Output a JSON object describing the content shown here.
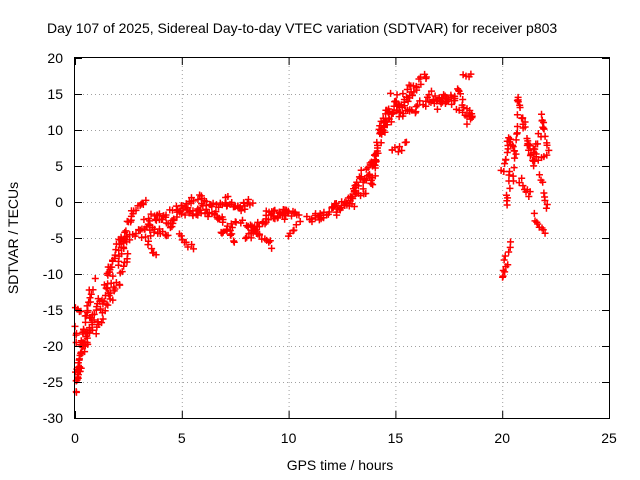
{
  "chart_data": {
    "type": "scatter",
    "title": "Day 107 of 2025, Sidereal Day-to-day VTEC variation (SDTVAR) for receiver p803",
    "xlabel": "GPS time / hours",
    "ylabel": "SDTVAR / TECUs",
    "xlim": [
      0,
      25
    ],
    "ylim": [
      -30,
      20
    ],
    "xticks": [
      0,
      5,
      10,
      15,
      20,
      25
    ],
    "yticks": [
      -30,
      -25,
      -20,
      -15,
      -10,
      -5,
      0,
      5,
      10,
      15,
      20
    ],
    "xtick_labels": [
      "0",
      "5",
      "10",
      "15",
      "20",
      "25"
    ],
    "ytick_labels": [
      "-30",
      "-25",
      "-20",
      "-15",
      "-10",
      "-5",
      "0",
      "5",
      "10",
      "15",
      "20"
    ],
    "grid": true,
    "marker": "+",
    "series_color": "#ff0000",
    "segments": [
      {
        "x0": 0.0,
        "x1": 0.25,
        "y0": -26.0,
        "y1": -22.0,
        "n": 14,
        "jitter": 1.2
      },
      {
        "x0": 0.05,
        "x1": 0.45,
        "y0": -25.0,
        "y1": -18.0,
        "n": 14,
        "jitter": 1.0
      },
      {
        "x0": 0.2,
        "x1": 0.8,
        "y0": -22.0,
        "y1": -16.0,
        "n": 14,
        "jitter": 1.0
      },
      {
        "x0": 0.5,
        "x1": 1.0,
        "y0": -20.0,
        "y1": -15.0,
        "n": 12,
        "jitter": 1.0
      },
      {
        "x0": 0.3,
        "x1": 0.7,
        "y0": -20.0,
        "y1": -12.0,
        "n": 10,
        "jitter": 0.8
      },
      {
        "x0": 0.55,
        "x1": 0.9,
        "y0": -15.0,
        "y1": -11.0,
        "n": 6,
        "jitter": 0.5
      },
      {
        "x0": 0.05,
        "x1": 0.3,
        "y0": -15.0,
        "y1": -15.5,
        "n": 4,
        "jitter": 0.4
      },
      {
        "x0": 0.0,
        "x1": 0.1,
        "y0": -17.5,
        "y1": -19.5,
        "n": 4,
        "jitter": 0.4
      },
      {
        "x0": 1.0,
        "x1": 1.6,
        "y0": -18.0,
        "y1": -12.0,
        "n": 16,
        "jitter": 1.2
      },
      {
        "x0": 1.0,
        "x1": 1.8,
        "y0": -15.0,
        "y1": -9.0,
        "n": 16,
        "jitter": 1.2
      },
      {
        "x0": 1.5,
        "x1": 2.2,
        "y0": -11.0,
        "y1": -5.0,
        "n": 16,
        "jitter": 1.2
      },
      {
        "x0": 1.6,
        "x1": 2.5,
        "y0": -14.0,
        "y1": -8.0,
        "n": 16,
        "jitter": 1.2
      },
      {
        "x0": 2.0,
        "x1": 2.4,
        "y0": -9.0,
        "y1": -4.5,
        "n": 10,
        "jitter": 0.8
      },
      {
        "x0": 2.2,
        "x1": 2.7,
        "y0": -6.0,
        "y1": -1.0,
        "n": 10,
        "jitter": 0.8
      },
      {
        "x0": 2.6,
        "x1": 3.3,
        "y0": -2.0,
        "y1": 0.5,
        "n": 10,
        "jitter": 0.6
      },
      {
        "x0": 2.3,
        "x1": 3.8,
        "y0": -5.0,
        "y1": -2.0,
        "n": 16,
        "jitter": 0.8
      },
      {
        "x0": 3.0,
        "x1": 3.8,
        "y0": -4.0,
        "y1": -7.5,
        "n": 10,
        "jitter": 0.5
      },
      {
        "x0": 3.2,
        "x1": 4.4,
        "y0": -4.0,
        "y1": -1.0,
        "n": 12,
        "jitter": 0.7
      },
      {
        "x0": 3.5,
        "x1": 4.5,
        "y0": -4.5,
        "y1": -4.0,
        "n": 12,
        "jitter": 0.6
      },
      {
        "x0": 3.9,
        "x1": 4.5,
        "y0": -1.5,
        "y1": -3.0,
        "n": 8,
        "jitter": 0.5
      },
      {
        "x0": 4.4,
        "x1": 5.0,
        "y0": -3.5,
        "y1": -0.5,
        "n": 10,
        "jitter": 0.5
      },
      {
        "x0": 4.6,
        "x1": 5.4,
        "y0": -1.0,
        "y1": -1.5,
        "n": 10,
        "jitter": 0.5
      },
      {
        "x0": 4.9,
        "x1": 5.5,
        "y0": -4.5,
        "y1": -6.5,
        "n": 8,
        "jitter": 0.4
      },
      {
        "x0": 5.0,
        "x1": 5.9,
        "y0": -0.5,
        "y1": 1.0,
        "n": 10,
        "jitter": 0.5
      },
      {
        "x0": 5.5,
        "x1": 6.2,
        "y0": -2.0,
        "y1": 0.0,
        "n": 10,
        "jitter": 0.5
      },
      {
        "x0": 5.3,
        "x1": 6.5,
        "y0": -1.0,
        "y1": -2.0,
        "n": 12,
        "jitter": 0.5
      },
      {
        "x0": 6.0,
        "x1": 6.9,
        "y0": 0.0,
        "y1": -2.5,
        "n": 10,
        "jitter": 0.5
      },
      {
        "x0": 6.3,
        "x1": 7.2,
        "y0": -1.0,
        "y1": 0.5,
        "n": 10,
        "jitter": 0.5
      },
      {
        "x0": 6.7,
        "x1": 7.5,
        "y0": -2.0,
        "y1": -5.5,
        "n": 10,
        "jitter": 0.5
      },
      {
        "x0": 6.8,
        "x1": 7.6,
        "y0": -4.5,
        "y1": -3.0,
        "n": 10,
        "jitter": 0.5
      },
      {
        "x0": 7.0,
        "x1": 8.0,
        "y0": 0.0,
        "y1": -1.0,
        "n": 12,
        "jitter": 0.5
      },
      {
        "x0": 7.5,
        "x1": 8.3,
        "y0": -0.5,
        "y1": 0.0,
        "n": 10,
        "jitter": 0.5
      },
      {
        "x0": 7.8,
        "x1": 8.6,
        "y0": -2.5,
        "y1": -4.5,
        "n": 10,
        "jitter": 0.5
      },
      {
        "x0": 8.0,
        "x1": 8.5,
        "y0": -5.0,
        "y1": -3.0,
        "n": 8,
        "jitter": 0.5
      },
      {
        "x0": 8.2,
        "x1": 9.0,
        "y0": -4.5,
        "y1": -2.0,
        "n": 10,
        "jitter": 0.5
      },
      {
        "x0": 8.4,
        "x1": 9.2,
        "y0": -4.0,
        "y1": -6.0,
        "n": 10,
        "jitter": 0.5
      },
      {
        "x0": 8.8,
        "x1": 9.4,
        "y0": -3.0,
        "y1": -1.0,
        "n": 8,
        "jitter": 0.5
      },
      {
        "x0": 9.0,
        "x1": 9.8,
        "y0": -1.5,
        "y1": -2.0,
        "n": 10,
        "jitter": 0.5
      },
      {
        "x0": 9.3,
        "x1": 10.0,
        "y0": -2.5,
        "y1": -1.0,
        "n": 10,
        "jitter": 0.5
      },
      {
        "x0": 9.8,
        "x1": 10.5,
        "y0": -1.5,
        "y1": -2.0,
        "n": 10,
        "jitter": 0.5
      },
      {
        "x0": 10.0,
        "x1": 10.5,
        "y0": -4.5,
        "y1": -3.0,
        "n": 6,
        "jitter": 0.4
      },
      {
        "x0": 10.9,
        "x1": 11.6,
        "y0": -2.5,
        "y1": -1.5,
        "n": 10,
        "jitter": 0.5
      },
      {
        "x0": 11.3,
        "x1": 12.3,
        "y0": -2.0,
        "y1": -1.0,
        "n": 12,
        "jitter": 0.6
      },
      {
        "x0": 12.0,
        "x1": 12.8,
        "y0": -1.0,
        "y1": 0.0,
        "n": 10,
        "jitter": 0.6
      },
      {
        "x0": 12.3,
        "x1": 13.2,
        "y0": -1.5,
        "y1": 2.0,
        "n": 12,
        "jitter": 0.8
      },
      {
        "x0": 12.8,
        "x1": 13.4,
        "y0": 0.0,
        "y1": 4.0,
        "n": 12,
        "jitter": 0.8
      },
      {
        "x0": 13.0,
        "x1": 14.0,
        "y0": 0.0,
        "y1": 6.0,
        "n": 16,
        "jitter": 1.2
      },
      {
        "x0": 13.5,
        "x1": 14.2,
        "y0": 1.0,
        "y1": 8.0,
        "n": 16,
        "jitter": 1.5
      },
      {
        "x0": 13.8,
        "x1": 14.5,
        "y0": 2.0,
        "y1": 12.0,
        "n": 18,
        "jitter": 1.5
      },
      {
        "x0": 14.0,
        "x1": 14.8,
        "y0": 6.0,
        "y1": 14.0,
        "n": 16,
        "jitter": 1.5
      },
      {
        "x0": 14.3,
        "x1": 15.2,
        "y0": 10.0,
        "y1": 13.0,
        "n": 14,
        "jitter": 1.2
      },
      {
        "x0": 14.5,
        "x1": 15.5,
        "y0": 12.0,
        "y1": 15.0,
        "n": 14,
        "jitter": 1.2
      },
      {
        "x0": 15.0,
        "x1": 16.0,
        "y0": 13.0,
        "y1": 16.0,
        "n": 14,
        "jitter": 1.0
      },
      {
        "x0": 15.5,
        "x1": 16.5,
        "y0": 15.5,
        "y1": 17.5,
        "n": 12,
        "jitter": 0.8
      },
      {
        "x0": 15.2,
        "x1": 16.0,
        "y0": 12.0,
        "y1": 12.5,
        "n": 10,
        "jitter": 0.6
      },
      {
        "x0": 14.8,
        "x1": 15.5,
        "y0": 7.0,
        "y1": 8.0,
        "n": 8,
        "jitter": 0.6
      },
      {
        "x0": 16.0,
        "x1": 17.2,
        "y0": 13.5,
        "y1": 14.5,
        "n": 14,
        "jitter": 0.7
      },
      {
        "x0": 16.5,
        "x1": 17.5,
        "y0": 15.0,
        "y1": 14.0,
        "n": 12,
        "jitter": 0.7
      },
      {
        "x0": 17.0,
        "x1": 18.0,
        "y0": 13.5,
        "y1": 15.5,
        "n": 12,
        "jitter": 0.7
      },
      {
        "x0": 17.5,
        "x1": 18.6,
        "y0": 14.0,
        "y1": 12.0,
        "n": 12,
        "jitter": 0.7
      },
      {
        "x0": 18.0,
        "x1": 18.6,
        "y0": 15.0,
        "y1": 12.0,
        "n": 8,
        "jitter": 0.6
      },
      {
        "x0": 18.2,
        "x1": 18.5,
        "y0": 17.5,
        "y1": 17.5,
        "n": 4,
        "jitter": 0.4
      },
      {
        "x0": 18.4,
        "x1": 18.6,
        "y0": 11.0,
        "y1": 12.0,
        "n": 3,
        "jitter": 0.3
      },
      {
        "x0": 20.0,
        "x1": 20.2,
        "y0": -10.5,
        "y1": -9.0,
        "n": 6,
        "jitter": 0.5
      },
      {
        "x0": 20.1,
        "x1": 20.4,
        "y0": -8.0,
        "y1": -5.5,
        "n": 5,
        "jitter": 0.4
      },
      {
        "x0": 20.2,
        "x1": 20.4,
        "y0": -1.0,
        "y1": 4.0,
        "n": 8,
        "jitter": 0.6
      },
      {
        "x0": 20.0,
        "x1": 20.4,
        "y0": 4.0,
        "y1": 9.0,
        "n": 10,
        "jitter": 0.8
      },
      {
        "x0": 20.2,
        "x1": 20.6,
        "y0": 9.0,
        "y1": 7.0,
        "n": 8,
        "jitter": 0.7
      },
      {
        "x0": 20.5,
        "x1": 20.8,
        "y0": 3.0,
        "y1": 14.0,
        "n": 12,
        "jitter": 0.8
      },
      {
        "x0": 20.7,
        "x1": 21.0,
        "y0": 15.0,
        "y1": 10.0,
        "n": 8,
        "jitter": 0.6
      },
      {
        "x0": 20.8,
        "x1": 21.3,
        "y0": 3.0,
        "y1": 1.0,
        "n": 8,
        "jitter": 0.6
      },
      {
        "x0": 21.0,
        "x1": 21.4,
        "y0": 11.0,
        "y1": 6.0,
        "n": 10,
        "jitter": 0.7
      },
      {
        "x0": 21.2,
        "x1": 21.7,
        "y0": 8.0,
        "y1": 6.0,
        "n": 8,
        "jitter": 0.6
      },
      {
        "x0": 21.4,
        "x1": 21.9,
        "y0": 5.0,
        "y1": 11.0,
        "n": 10,
        "jitter": 0.7
      },
      {
        "x0": 21.5,
        "x1": 22.0,
        "y0": -2.0,
        "y1": -4.0,
        "n": 8,
        "jitter": 0.5
      },
      {
        "x0": 21.8,
        "x1": 22.1,
        "y0": 12.0,
        "y1": 8.0,
        "n": 8,
        "jitter": 0.6
      },
      {
        "x0": 21.8,
        "x1": 22.1,
        "y0": 4.0,
        "y1": -1.0,
        "n": 8,
        "jitter": 0.6
      },
      {
        "x0": 21.9,
        "x1": 22.2,
        "y0": 6.5,
        "y1": 7.0,
        "n": 4,
        "jitter": 0.4
      }
    ]
  }
}
